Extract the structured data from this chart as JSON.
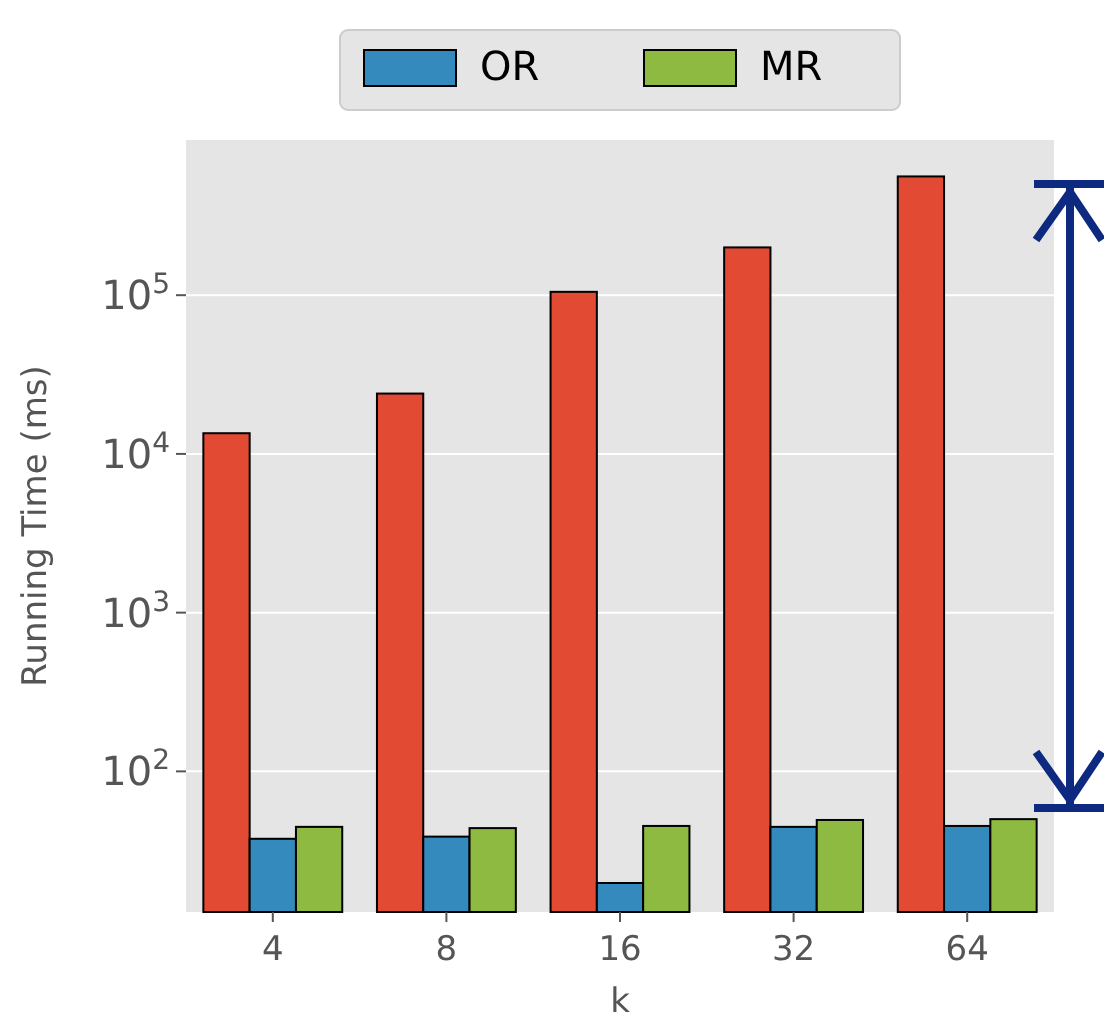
{
  "chart_data": {
    "type": "bar",
    "xlabel": "k",
    "ylabel": "Running Time (ms)",
    "categories": [
      "4",
      "8",
      "16",
      "32",
      "64"
    ],
    "series": [
      {
        "color": "#e24a33",
        "values": [
          13500,
          24000,
          105000,
          200000,
          560000
        ]
      },
      {
        "name": "OR",
        "color": "#348abd",
        "values": [
          37.6,
          38.8,
          19.8,
          44.7,
          45.3
        ]
      },
      {
        "name": "MR",
        "color": "#8eba42",
        "values": [
          44.7,
          43.9,
          45.3,
          49.4,
          50
        ]
      }
    ],
    "log": "y",
    "ylim": [
      13,
      950000
    ],
    "yticks": [
      {
        "value": 100,
        "label": "10$^{2}$"
      },
      {
        "value": 1000,
        "label": "10$^{3}$"
      },
      {
        "value": 10000,
        "label": "10$^{4}$"
      },
      {
        "value": 100000,
        "label": "10$^{5}$"
      }
    ],
    "grid": "y",
    "legend": "top"
  }
}
